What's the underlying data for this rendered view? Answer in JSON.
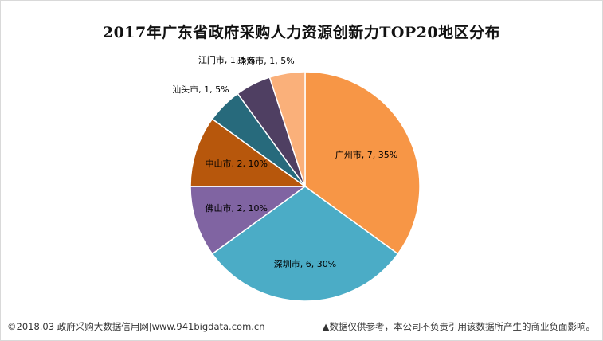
{
  "chart_data": {
    "type": "pie",
    "title": "2017年广东省政府采购人力资源创新力TOP20地区分布",
    "slices": [
      {
        "name": "广州市",
        "value": 7,
        "percent": "35%",
        "color": "#F79646",
        "label": "广州市, 7, 35%"
      },
      {
        "name": "深圳市",
        "value": 6,
        "percent": "30%",
        "color": "#4BACC6",
        "label": "深圳市, 6, 30%"
      },
      {
        "name": "佛山市",
        "value": 2,
        "percent": "10%",
        "color": "#8064A2",
        "label": "佛山市, 2, 10%"
      },
      {
        "name": "中山市",
        "value": 2,
        "percent": "10%",
        "color": "#B7570C",
        "label": "中山市, 2, 10%"
      },
      {
        "name": "汕头市",
        "value": 1,
        "percent": "5%",
        "color": "#276A7C",
        "label": "汕头市, 1, 5%"
      },
      {
        "name": "江门市",
        "value": 1,
        "percent": "5%",
        "color": "#4F3F62",
        "label": "江门市, 1, 5%"
      },
      {
        "name": "珠海市",
        "value": 1,
        "percent": "5%",
        "color": "#FAB07A",
        "label": "珠海市, 1, 5%"
      }
    ]
  },
  "footer": {
    "left": "©2018.03 政府采购大数据信用网|www.941bigdata.com.cn",
    "right": "▲数据仅供参考，本公司不负责引用该数据所产生的商业负面影响。"
  }
}
